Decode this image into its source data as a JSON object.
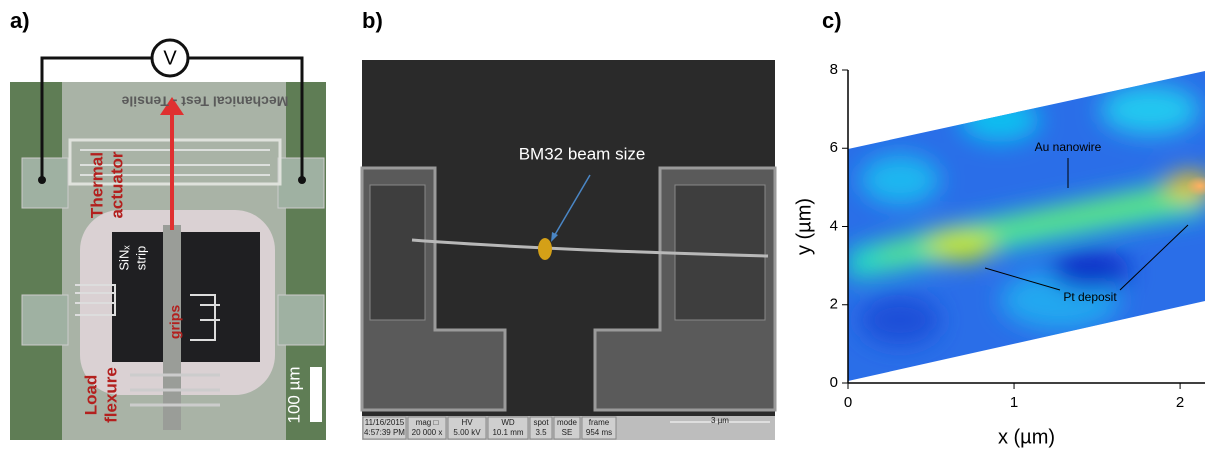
{
  "panel_a": {
    "label": "a)",
    "voltmeter": "V",
    "chip_text": "Mechanical Test - Tensile",
    "actuator_1": "Thermal",
    "actuator_2": "actuator",
    "strip_1": "SiNₓ",
    "strip_2": "strip",
    "grips": "grips",
    "flexure_1": "Load",
    "flexure_2": "flexure",
    "scale": "100 µm"
  },
  "panel_b": {
    "label": "b)",
    "annotation": "BM32 beam size",
    "info": [
      [
        "11/16/2015",
        "4:57:39 PM"
      ],
      [
        "mag □",
        "20 000 x"
      ],
      [
        "HV",
        "5.00 kV"
      ],
      [
        "WD",
        "10.1 mm"
      ],
      [
        "spot",
        "3.5"
      ],
      [
        "mode",
        "SE"
      ],
      [
        "frame",
        "954 ms"
      ]
    ],
    "scale": "3 µm"
  },
  "chart_data": {
    "type": "heatmap",
    "label": "c)",
    "xlabel": "x (µm)",
    "ylabel": "y (µm)",
    "xlim": [
      0,
      2.15
    ],
    "ylim": [
      0,
      8
    ],
    "xticks": [
      0,
      1,
      2
    ],
    "yticks": [
      0,
      2,
      4,
      6,
      8
    ],
    "annotations": [
      "Au nanowire",
      "Pt deposit"
    ]
  }
}
